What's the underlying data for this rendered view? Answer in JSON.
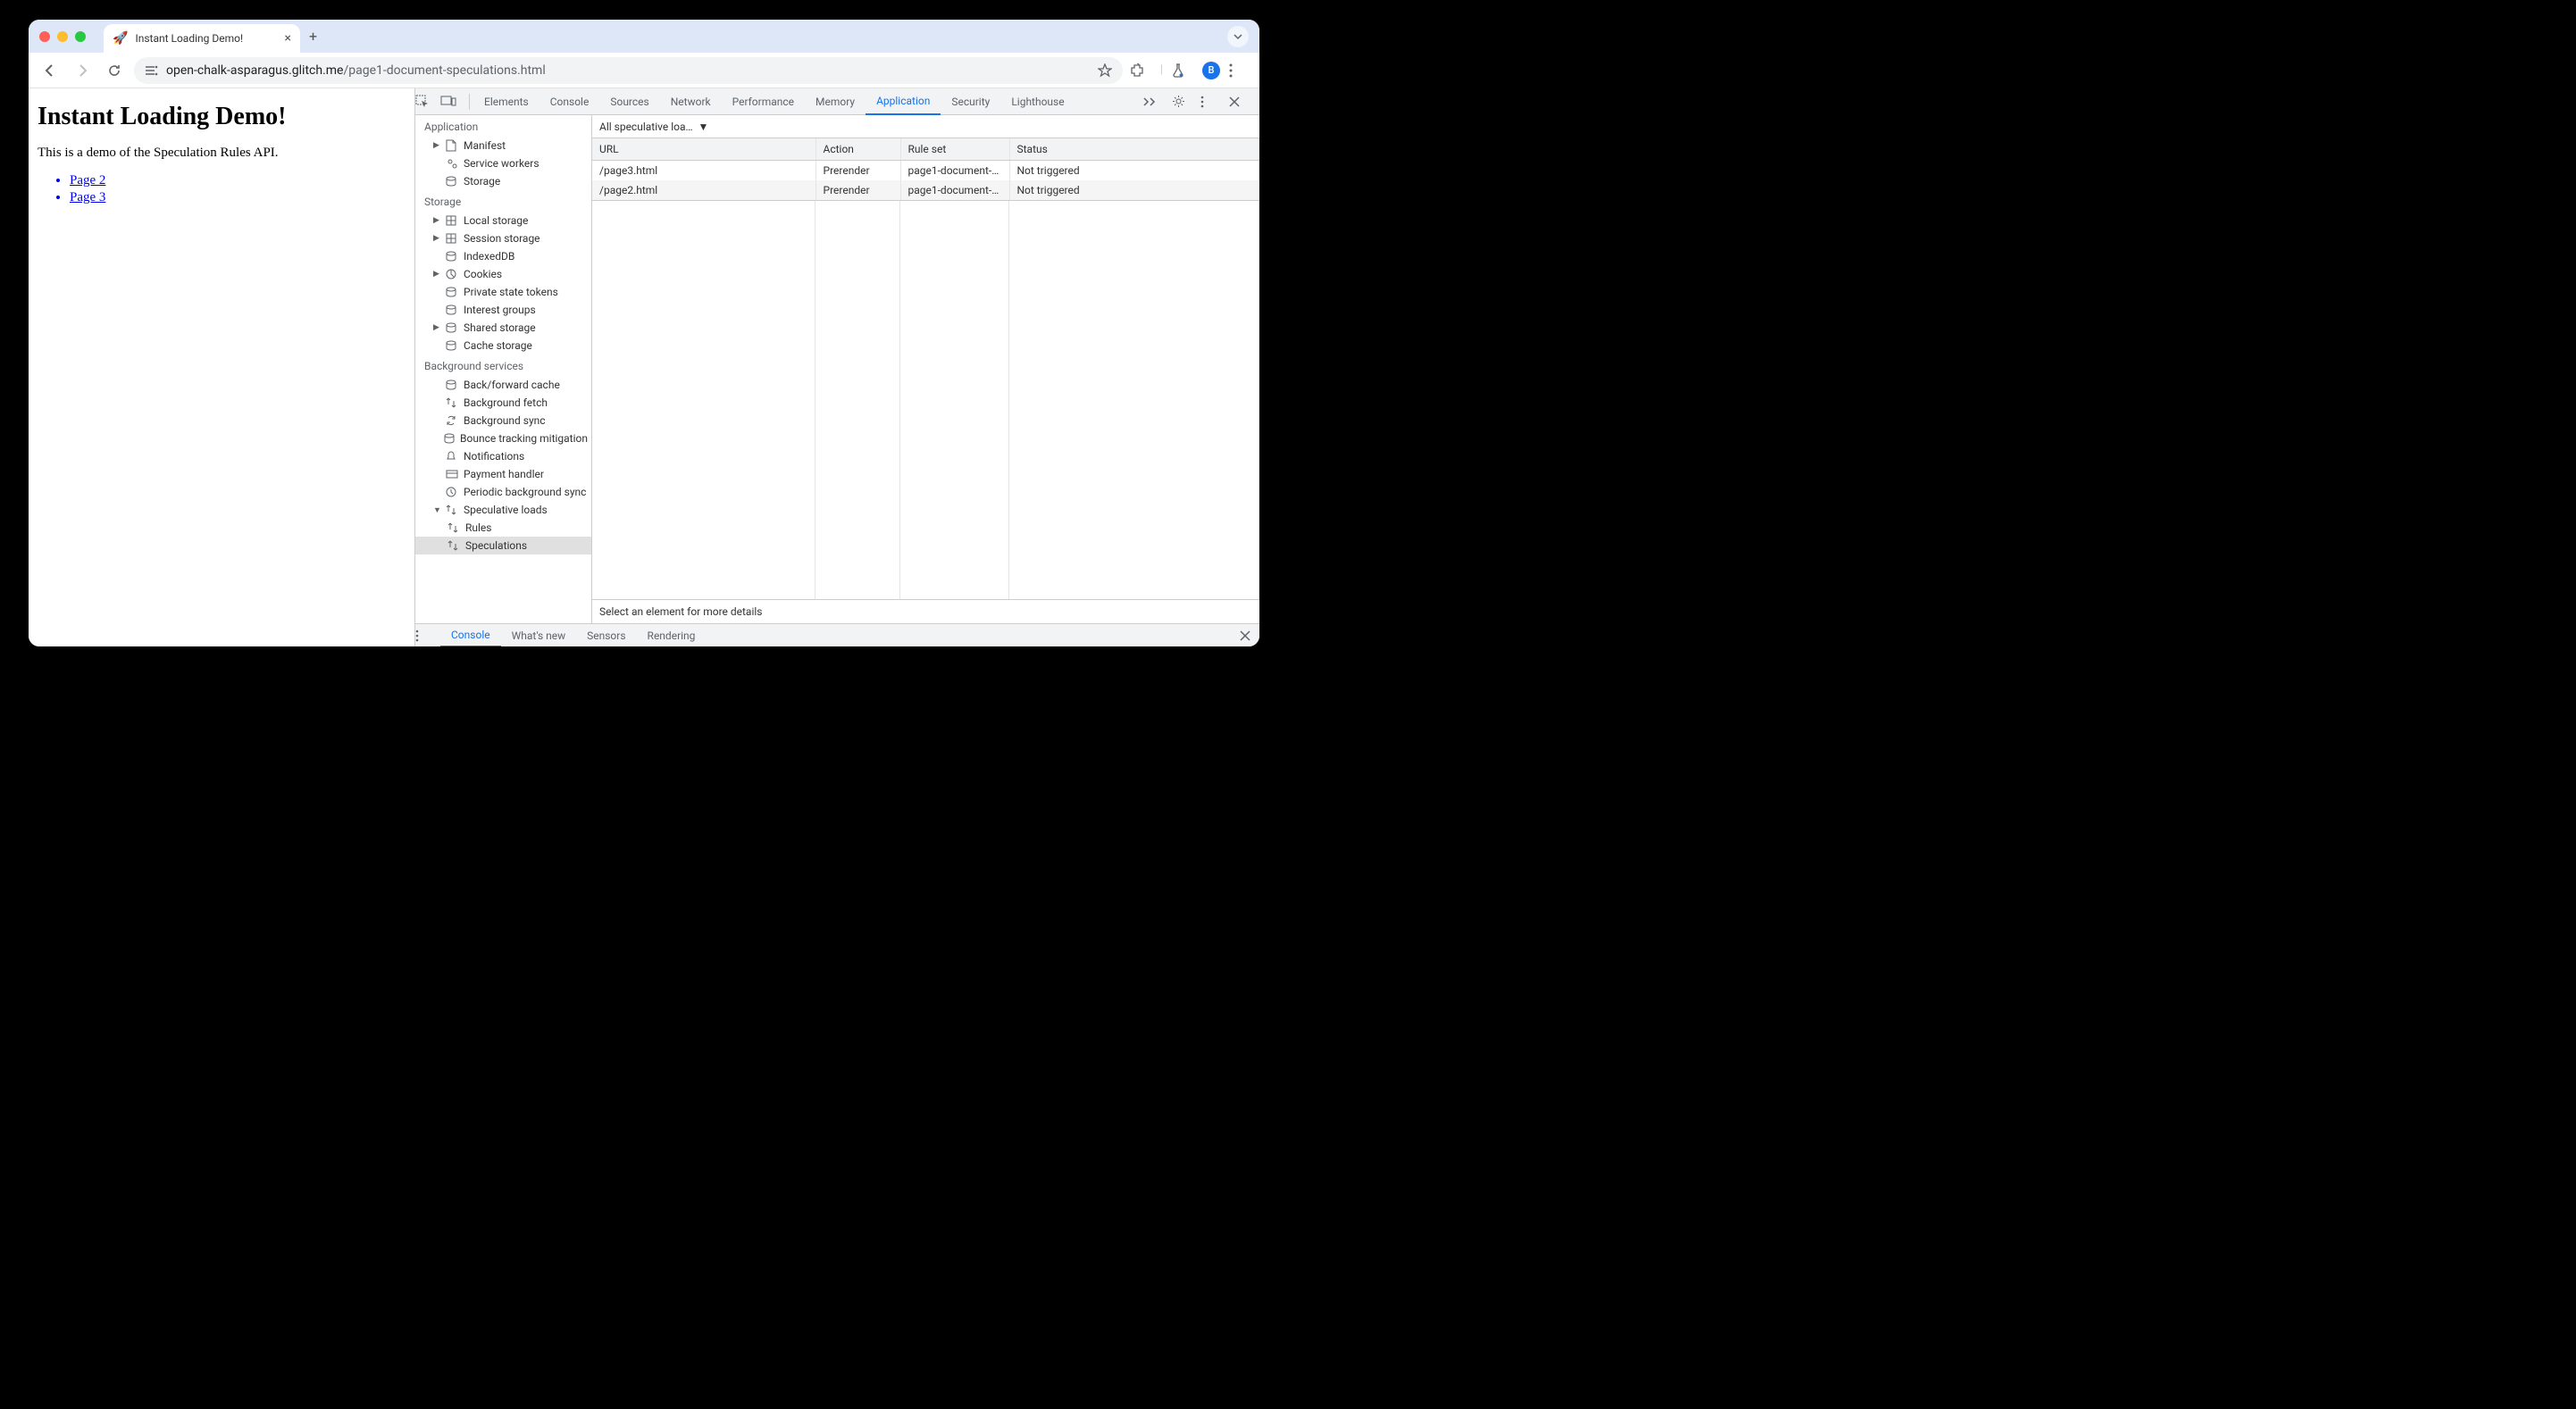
{
  "window": {
    "tab": {
      "favicon": "🚀",
      "title": "Instant Loading Demo!"
    },
    "url_host": "open-chalk-asparagus.glitch.me",
    "url_path": "/page1-document-speculations.html",
    "avatar_initial": "B"
  },
  "page": {
    "heading": "Instant Loading Demo!",
    "paragraph": "This is a demo of the Speculation Rules API.",
    "links": [
      "Page 2",
      "Page 3"
    ]
  },
  "devtools": {
    "tabs": [
      "Elements",
      "Console",
      "Sources",
      "Network",
      "Performance",
      "Memory",
      "Application",
      "Security",
      "Lighthouse"
    ],
    "active_tab": "Application",
    "sidebar": {
      "sections": [
        {
          "title": "Application",
          "items": [
            {
              "icon": "file",
              "label": "Manifest",
              "arrow": "▶"
            },
            {
              "icon": "gears",
              "label": "Service workers"
            },
            {
              "icon": "db",
              "label": "Storage"
            }
          ]
        },
        {
          "title": "Storage",
          "items": [
            {
              "icon": "grid",
              "label": "Local storage",
              "arrow": "▶"
            },
            {
              "icon": "grid",
              "label": "Session storage",
              "arrow": "▶"
            },
            {
              "icon": "db",
              "label": "IndexedDB"
            },
            {
              "icon": "cookie",
              "label": "Cookies",
              "arrow": "▶"
            },
            {
              "icon": "db",
              "label": "Private state tokens"
            },
            {
              "icon": "db",
              "label": "Interest groups"
            },
            {
              "icon": "db",
              "label": "Shared storage",
              "arrow": "▶"
            },
            {
              "icon": "db",
              "label": "Cache storage"
            }
          ]
        },
        {
          "title": "Background services",
          "items": [
            {
              "icon": "db",
              "label": "Back/forward cache"
            },
            {
              "icon": "arrows",
              "label": "Background fetch"
            },
            {
              "icon": "sync",
              "label": "Background sync"
            },
            {
              "icon": "db",
              "label": "Bounce tracking mitigation"
            },
            {
              "icon": "bell",
              "label": "Notifications"
            },
            {
              "icon": "card",
              "label": "Payment handler"
            },
            {
              "icon": "clock",
              "label": "Periodic background sync"
            },
            {
              "icon": "arrows",
              "label": "Speculative loads",
              "arrow": "▼",
              "expanded": true,
              "children": [
                {
                  "icon": "arrows",
                  "label": "Rules"
                },
                {
                  "icon": "arrows",
                  "label": "Speculations",
                  "selected": true
                }
              ]
            }
          ]
        }
      ]
    },
    "main": {
      "filter_label": "All speculative loa…",
      "columns": [
        "URL",
        "Action",
        "Rule set",
        "Status"
      ],
      "col_widths": [
        "250px",
        "95px",
        "122px",
        "auto"
      ],
      "rows": [
        {
          "url": "/page3.html",
          "action": "Prerender",
          "ruleset": "page1-document-…",
          "status": "Not triggered"
        },
        {
          "url": "/page2.html",
          "action": "Prerender",
          "ruleset": "page1-document-…",
          "status": "Not triggered"
        }
      ],
      "detail_msg": "Select an element for more details"
    },
    "drawer": {
      "tabs": [
        "Console",
        "What's new",
        "Sensors",
        "Rendering"
      ],
      "active": "Console"
    }
  },
  "colors": {
    "tab_bar_bg": "#dde7f7",
    "accent": "#1a73e8",
    "link": "#0000ee",
    "border": "#cccccc"
  }
}
